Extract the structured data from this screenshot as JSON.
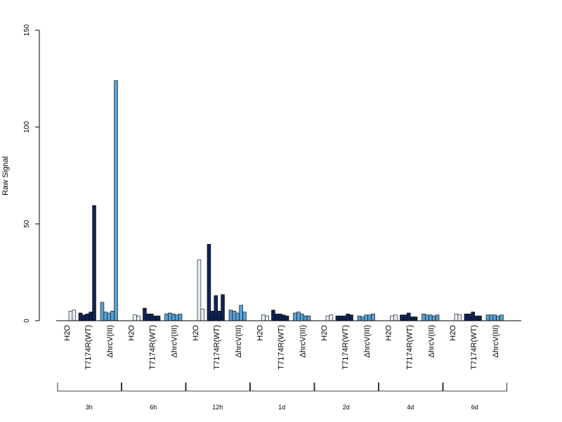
{
  "chart_data": {
    "type": "bar",
    "title": "",
    "xlabel": "",
    "ylabel": "Raw Signal",
    "ylim": [
      0,
      150
    ],
    "yticks": [
      0,
      50,
      100,
      150
    ],
    "grid": false,
    "colors": {
      "H2O": "#e6eef8",
      "T7174R(WT)": "#0f2452",
      "ΔhrcV(III)": "#5aa0d2",
      "outline": "#000000",
      "axis": "#000000"
    },
    "treatments": [
      "H2O",
      "T7174R(WT)",
      "ΔhrcV(III)"
    ],
    "groups": [
      {
        "time": "3h",
        "bars": {
          "H2O": [
            5,
            5.5
          ],
          "T7174R(WT)": [
            4,
            3,
            3.5,
            4.5,
            59.5
          ],
          "ΔhrcV(III)": [
            9.5,
            4.5,
            4,
            5,
            124
          ]
        }
      },
      {
        "time": "6h",
        "bars": {
          "H2O": [
            3,
            2.5
          ],
          "T7174R(WT)": [
            6.5,
            3.5,
            3.5,
            2.5,
            2.5
          ],
          "ΔhrcV(III)": [
            3.5,
            4,
            3.5,
            3,
            3.5
          ]
        }
      },
      {
        "time": "12h",
        "bars": {
          "H2O": [
            31.5,
            6
          ],
          "T7174R(WT)": [
            39.5,
            5,
            13,
            5,
            13.5
          ],
          "ΔhrcV(III)": [
            5.5,
            5,
            4,
            8,
            4.5
          ]
        }
      },
      {
        "time": "1d",
        "bars": {
          "H2O": [
            3,
            2.5
          ],
          "T7174R(WT)": [
            5.5,
            3.5,
            3.5,
            3,
            2.5
          ],
          "ΔhrcV(III)": [
            4,
            4.5,
            3.5,
            2.5,
            2.5
          ]
        }
      },
      {
        "time": "2d",
        "bars": {
          "H2O": [
            2.5,
            3
          ],
          "T7174R(WT)": [
            2.5,
            2.5,
            2.5,
            3.5,
            3
          ],
          "ΔhrcV(III)": [
            2.5,
            2,
            3,
            3,
            3.5
          ]
        }
      },
      {
        "time": "4d",
        "bars": {
          "H2O": [
            2.5,
            3
          ],
          "T7174R(WT)": [
            3,
            3,
            4,
            2,
            2
          ],
          "ΔhrcV(III)": [
            3.5,
            3,
            3,
            2.5,
            3
          ]
        }
      },
      {
        "time": "6d",
        "bars": {
          "H2O": [
            3.5,
            3
          ],
          "T7174R(WT)": [
            3.5,
            3.5,
            4.5,
            2.5,
            2.5
          ],
          "ΔhrcV(III)": [
            3,
            3,
            3,
            2.5,
            3
          ]
        }
      }
    ]
  }
}
